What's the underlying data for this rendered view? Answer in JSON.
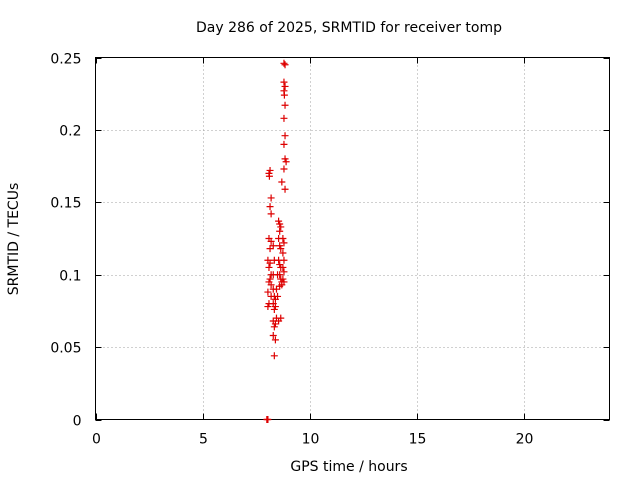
{
  "chart_data": {
    "type": "scatter",
    "title": "Day 286 of 2025, SRMTID for receiver tomp",
    "xlabel": "GPS time / hours",
    "ylabel": "SRMTID / TECUs",
    "xlim": [
      0,
      24
    ],
    "ylim": [
      0,
      0.25
    ],
    "xticks": [
      0,
      5,
      10,
      15,
      20
    ],
    "xtick_labels": [
      "0",
      "5",
      "10",
      "15",
      "20"
    ],
    "yticks": [
      0,
      0.05,
      0.1,
      0.15,
      0.2,
      0.25
    ],
    "ytick_labels": [
      "0",
      "0.05",
      "0.1",
      "0.15",
      "0.2",
      "0.25"
    ],
    "grid": true,
    "marker": "+",
    "color": "#dd0000",
    "series": [
      {
        "name": "SRMTID",
        "points": [
          [
            8.0,
            0.0
          ],
          [
            8.02,
            0.0
          ],
          [
            8.05,
            0.0
          ],
          [
            8.1,
            0.17
          ],
          [
            8.15,
            0.172
          ],
          [
            8.12,
            0.168
          ],
          [
            8.2,
            0.153
          ],
          [
            8.15,
            0.147
          ],
          [
            8.2,
            0.142
          ],
          [
            8.1,
            0.125
          ],
          [
            8.2,
            0.123
          ],
          [
            8.15,
            0.118
          ],
          [
            8.05,
            0.11
          ],
          [
            8.15,
            0.108
          ],
          [
            8.1,
            0.105
          ],
          [
            8.2,
            0.1
          ],
          [
            8.15,
            0.097
          ],
          [
            8.1,
            0.095
          ],
          [
            8.2,
            0.093
          ],
          [
            8.05,
            0.088
          ],
          [
            8.2,
            0.085
          ],
          [
            8.1,
            0.08
          ],
          [
            8.05,
            0.078
          ],
          [
            8.3,
            0.12
          ],
          [
            8.35,
            0.11
          ],
          [
            8.3,
            0.1
          ],
          [
            8.3,
            0.09
          ],
          [
            8.35,
            0.085
          ],
          [
            8.4,
            0.083
          ],
          [
            8.3,
            0.08
          ],
          [
            8.4,
            0.078
          ],
          [
            8.35,
            0.076
          ],
          [
            8.3,
            0.068
          ],
          [
            8.4,
            0.066
          ],
          [
            8.35,
            0.064
          ],
          [
            8.3,
            0.058
          ],
          [
            8.4,
            0.055
          ],
          [
            8.35,
            0.044
          ],
          [
            8.5,
            0.1
          ],
          [
            8.45,
            0.09
          ],
          [
            8.5,
            0.085
          ],
          [
            8.45,
            0.07
          ],
          [
            8.6,
            0.13
          ],
          [
            8.55,
            0.137
          ],
          [
            8.6,
            0.135
          ],
          [
            8.65,
            0.133
          ],
          [
            8.55,
            0.125
          ],
          [
            8.6,
            0.12
          ],
          [
            8.65,
            0.118
          ],
          [
            8.55,
            0.11
          ],
          [
            8.6,
            0.107
          ],
          [
            8.65,
            0.105
          ],
          [
            8.6,
            0.1
          ],
          [
            8.65,
            0.097
          ],
          [
            8.7,
            0.095
          ],
          [
            8.6,
            0.092
          ],
          [
            8.65,
            0.07
          ],
          [
            8.55,
            0.068
          ],
          [
            8.7,
            0.164
          ],
          [
            8.75,
            0.125
          ],
          [
            8.8,
            0.122
          ],
          [
            8.75,
            0.115
          ],
          [
            8.8,
            0.11
          ],
          [
            8.75,
            0.105
          ],
          [
            8.8,
            0.102
          ],
          [
            8.75,
            0.097
          ],
          [
            8.8,
            0.095
          ],
          [
            8.7,
            0.093
          ],
          [
            8.8,
            0.246
          ],
          [
            8.85,
            0.245
          ],
          [
            8.8,
            0.233
          ],
          [
            8.85,
            0.23
          ],
          [
            8.8,
            0.227
          ],
          [
            8.82,
            0.224
          ],
          [
            8.85,
            0.217
          ],
          [
            8.8,
            0.208
          ],
          [
            8.85,
            0.196
          ],
          [
            8.8,
            0.19
          ],
          [
            8.85,
            0.18
          ],
          [
            8.9,
            0.178
          ],
          [
            8.8,
            0.173
          ],
          [
            8.85,
            0.159
          ]
        ]
      }
    ]
  }
}
